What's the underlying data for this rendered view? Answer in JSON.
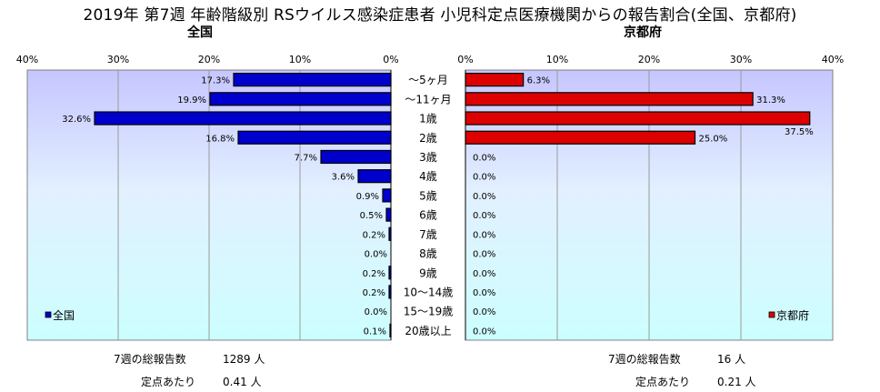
{
  "title": "2019年 第7週 年齢階級別 RSウイルス感染症患者 小児科定点医療機関からの報告割合(全国、京都府)",
  "chart_data": {
    "type": "bar",
    "orientation": "horizontal",
    "xlim": [
      0,
      40
    ],
    "ticks": [
      "0%",
      "10%",
      "20%",
      "30%",
      "40%"
    ],
    "categories": [
      "～5ヶ月",
      "～11ヶ月",
      "1歳",
      "2歳",
      "3歳",
      "4歳",
      "5歳",
      "6歳",
      "7歳",
      "8歳",
      "9歳",
      "10～14歳",
      "15～19歳",
      "20歳以上"
    ],
    "series": [
      {
        "name": "全国",
        "panel_title": "全国",
        "color": "#0000cc",
        "values": [
          17.3,
          19.9,
          32.6,
          16.8,
          7.7,
          3.6,
          0.9,
          0.5,
          0.2,
          0.0,
          0.2,
          0.2,
          0.0,
          0.1
        ],
        "labels": [
          "17.3%",
          "19.9%",
          "32.6%",
          "16.8%",
          "7.7%",
          "3.6%",
          "0.9%",
          "0.5%",
          "0.2%",
          "0.0%",
          "0.2%",
          "0.2%",
          "0.0%",
          "0.1%"
        ],
        "legend_position": "bottom-left"
      },
      {
        "name": "京都府",
        "panel_title": "京都府",
        "color": "#dd0000",
        "values": [
          6.3,
          31.3,
          37.5,
          25.0,
          0.0,
          0.0,
          0.0,
          0.0,
          0.0,
          0.0,
          0.0,
          0.0,
          0.0,
          0.0
        ],
        "labels": [
          "6.3%",
          "31.3%",
          "37.5%",
          "25.0%",
          "0.0%",
          "0.0%",
          "0.0%",
          "0.0%",
          "0.0%",
          "0.0%",
          "0.0%",
          "0.0%",
          "0.0%",
          "0.0%"
        ],
        "legend_position": "bottom-right"
      }
    ]
  },
  "footer": {
    "national": {
      "total_label": "7週の総報告数",
      "total_value": "1289 人",
      "per_label": "定点あたり",
      "per_value": "0.41 人"
    },
    "kyoto": {
      "total_label": "7週の総報告数",
      "total_value": "16 人",
      "per_label": "定点あたり",
      "per_value": "0.21 人"
    }
  }
}
